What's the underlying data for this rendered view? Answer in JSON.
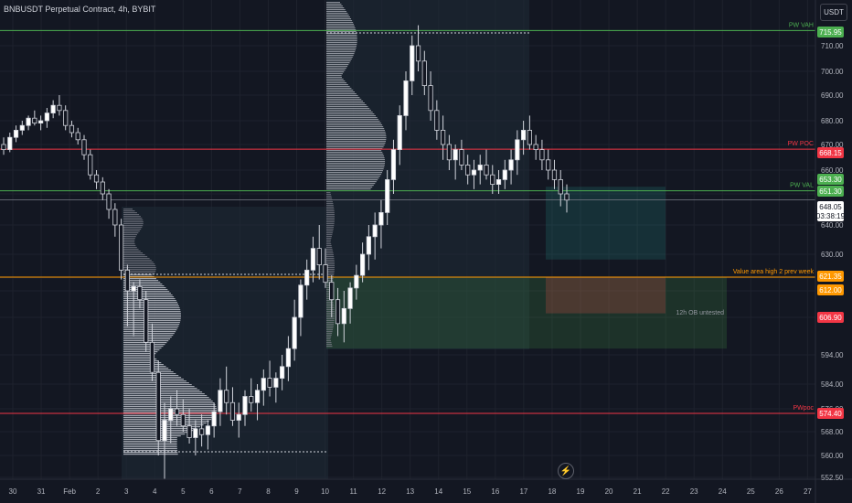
{
  "header": {
    "symbol_title": "BNBUSDT Perpetual Contract, 4h, BYBIT",
    "currency_button": "USDT",
    "lightning_icon": "lightning-icon"
  },
  "colors": {
    "background": "#131722",
    "up_candle": "#ffffff",
    "down_candle": "#131722",
    "green_line": "#4caf50",
    "red_line": "#f23645",
    "orange_line": "#ff9800",
    "grid": "#1e222d",
    "axis_text": "#b2b5be"
  },
  "chart_data": {
    "type": "candlestick",
    "title": "BNBUSDT Perpetual Contract, 4h, BYBIT",
    "y_axis": {
      "ticks": [
        552.5,
        560.0,
        568.0,
        576.0,
        584.0,
        594.0,
        606.0,
        612.0,
        621.0,
        630.0,
        640.0,
        650.0,
        660.0,
        670.0,
        680.0,
        690.0,
        700.0,
        710.0
      ],
      "range": [
        551,
        722
      ],
      "tick_labels_shown": [
        "552.50",
        "560.00",
        "568.00",
        "576.00",
        "584.00",
        "594.00",
        "606.00",
        "612.00",
        "621.00",
        "630.00",
        "640.00",
        "650.00",
        "660.00",
        "670.00",
        "680.00",
        "690.00",
        "700.00",
        "710.00"
      ]
    },
    "x_axis": {
      "labels": [
        "30",
        "31",
        "Feb",
        "2",
        "3",
        "4",
        "5",
        "6",
        "7",
        "8",
        "9",
        "10",
        "11",
        "12",
        "13",
        "14",
        "15",
        "16",
        "17",
        "18",
        "19",
        "20",
        "21",
        "22",
        "23",
        "24",
        "25",
        "26",
        "27"
      ]
    },
    "price_labels": [
      {
        "name": "PW VAH",
        "value": "715.95",
        "color": "#4caf50"
      },
      {
        "name": "PW POC",
        "value": "668.15",
        "color": "#f23645"
      },
      {
        "name": "pw-val-upper",
        "value": "653.30",
        "color": "#4caf50"
      },
      {
        "name": "PW VAL",
        "value": "651.30",
        "color": "#4caf50"
      },
      {
        "name": "current-price",
        "value": "648.05",
        "color": "#ffffff"
      },
      {
        "name": "countdown",
        "value": "03:38:19",
        "color": "#ffffff"
      },
      {
        "name": "Value area high 2 prev week",
        "value": "621.35",
        "color": "#ff9800"
      },
      {
        "name": "ob-top",
        "value": "612.00",
        "color": "#ff9800"
      },
      {
        "name": "12h OB untested",
        "value": "606.90",
        "color": "#f23645"
      },
      {
        "name": "PWpoc",
        "value": "574.40",
        "color": "#f23645"
      }
    ],
    "line_labels": {
      "pw_vah": "PW VAH",
      "pw_poc": "PW POC",
      "pw_val": "PW VAL",
      "vah_2_prev": "Value area high 2 prev week",
      "ob_untested": "12h OB untested",
      "pwpoc": "PWpoc"
    },
    "horizontal_lines": [
      {
        "price": 715.95,
        "color": "#4caf50"
      },
      {
        "price": 668.15,
        "color": "#f23645"
      },
      {
        "price": 651.3,
        "color": "#4caf50"
      },
      {
        "price": 648.05,
        "color": "#787b86"
      },
      {
        "price": 621.35,
        "color": "#ff9800"
      },
      {
        "price": 574.4,
        "color": "#f23645"
      }
    ],
    "candles": [
      [
        670,
        673,
        666,
        668
      ],
      [
        668,
        675,
        667,
        673
      ],
      [
        673,
        678,
        671,
        676
      ],
      [
        676,
        680,
        674,
        678
      ],
      [
        678,
        682,
        676,
        681
      ],
      [
        681,
        684,
        678,
        679
      ],
      [
        679,
        682,
        676,
        680
      ],
      [
        680,
        685,
        677,
        683
      ],
      [
        683,
        688,
        681,
        686
      ],
      [
        686,
        690,
        682,
        684
      ],
      [
        684,
        686,
        676,
        678
      ],
      [
        678,
        680,
        673,
        675
      ],
      [
        675,
        677,
        670,
        672
      ],
      [
        672,
        674,
        664,
        666
      ],
      [
        666,
        668,
        656,
        658
      ],
      [
        658,
        660,
        652,
        655
      ],
      [
        655,
        657,
        648,
        650
      ],
      [
        650,
        652,
        642,
        645
      ],
      [
        645,
        647,
        636,
        640
      ],
      [
        640,
        642,
        620,
        624
      ],
      [
        624,
        626,
        603,
        612
      ],
      [
        612,
        618,
        600,
        615
      ],
      [
        615,
        620,
        608,
        610
      ],
      [
        610,
        612,
        595,
        598
      ],
      [
        598,
        604,
        585,
        588
      ],
      [
        588,
        592,
        560,
        565
      ],
      [
        565,
        578,
        552,
        572
      ],
      [
        572,
        580,
        564,
        576
      ],
      [
        576,
        582,
        570,
        574
      ],
      [
        574,
        579,
        568,
        570
      ],
      [
        570,
        576,
        564,
        566
      ],
      [
        566,
        572,
        560,
        569
      ],
      [
        569,
        574,
        563,
        567
      ],
      [
        567,
        572,
        562,
        570
      ],
      [
        570,
        578,
        566,
        575
      ],
      [
        575,
        586,
        570,
        582
      ],
      [
        582,
        590,
        574,
        578
      ],
      [
        578,
        583,
        570,
        572
      ],
      [
        572,
        578,
        566,
        574
      ],
      [
        574,
        582,
        570,
        580
      ],
      [
        580,
        586,
        575,
        578
      ],
      [
        578,
        584,
        572,
        582
      ],
      [
        582,
        589,
        577,
        586
      ],
      [
        586,
        592,
        580,
        583
      ],
      [
        583,
        588,
        578,
        586
      ],
      [
        586,
        594,
        582,
        590
      ],
      [
        590,
        600,
        585,
        596
      ],
      [
        596,
        610,
        592,
        606
      ],
      [
        606,
        620,
        600,
        616
      ],
      [
        616,
        628,
        610,
        624
      ],
      [
        624,
        636,
        618,
        632
      ],
      [
        632,
        640,
        620,
        626
      ],
      [
        626,
        632,
        614,
        618
      ],
      [
        618,
        622,
        606,
        610
      ],
      [
        610,
        614,
        600,
        604
      ],
      [
        604,
        612,
        598,
        608
      ],
      [
        608,
        618,
        604,
        614
      ],
      [
        614,
        626,
        610,
        622
      ],
      [
        622,
        634,
        618,
        630
      ],
      [
        630,
        640,
        624,
        636
      ],
      [
        636,
        644,
        628,
        640
      ],
      [
        640,
        648,
        632,
        644
      ],
      [
        644,
        660,
        640,
        656
      ],
      [
        656,
        672,
        650,
        668
      ],
      [
        668,
        686,
        662,
        682
      ],
      [
        682,
        700,
        676,
        696
      ],
      [
        696,
        714,
        690,
        710
      ],
      [
        710,
        718,
        700,
        704
      ],
      [
        704,
        708,
        690,
        694
      ],
      [
        694,
        700,
        680,
        684
      ],
      [
        684,
        688,
        672,
        676
      ],
      [
        676,
        682,
        664,
        670
      ],
      [
        670,
        674,
        660,
        664
      ],
      [
        664,
        670,
        656,
        668
      ],
      [
        668,
        672,
        660,
        662
      ],
      [
        662,
        666,
        654,
        658
      ],
      [
        658,
        664,
        652,
        660
      ],
      [
        660,
        666,
        654,
        662
      ],
      [
        662,
        668,
        656,
        658
      ],
      [
        658,
        662,
        650,
        654
      ],
      [
        654,
        660,
        650,
        656
      ],
      [
        656,
        664,
        652,
        660
      ],
      [
        660,
        668,
        654,
        664
      ],
      [
        664,
        676,
        658,
        672
      ],
      [
        672,
        680,
        666,
        676
      ],
      [
        676,
        682,
        668,
        670
      ],
      [
        670,
        674,
        664,
        668
      ],
      [
        668,
        672,
        660,
        664
      ],
      [
        664,
        668,
        656,
        660
      ],
      [
        660,
        664,
        652,
        656
      ],
      [
        656,
        660,
        646,
        650
      ],
      [
        650,
        654,
        644,
        648
      ]
    ],
    "zones": [
      {
        "name": "teal-zone",
        "from": 628,
        "to": 653,
        "color": "#26a69a"
      },
      {
        "name": "ob-zone",
        "from": 606.9,
        "to": 621.35,
        "color": "#f23645"
      },
      {
        "name": "green-zone",
        "from": 596,
        "to": 621.35,
        "color": "#4caf50"
      }
    ]
  }
}
